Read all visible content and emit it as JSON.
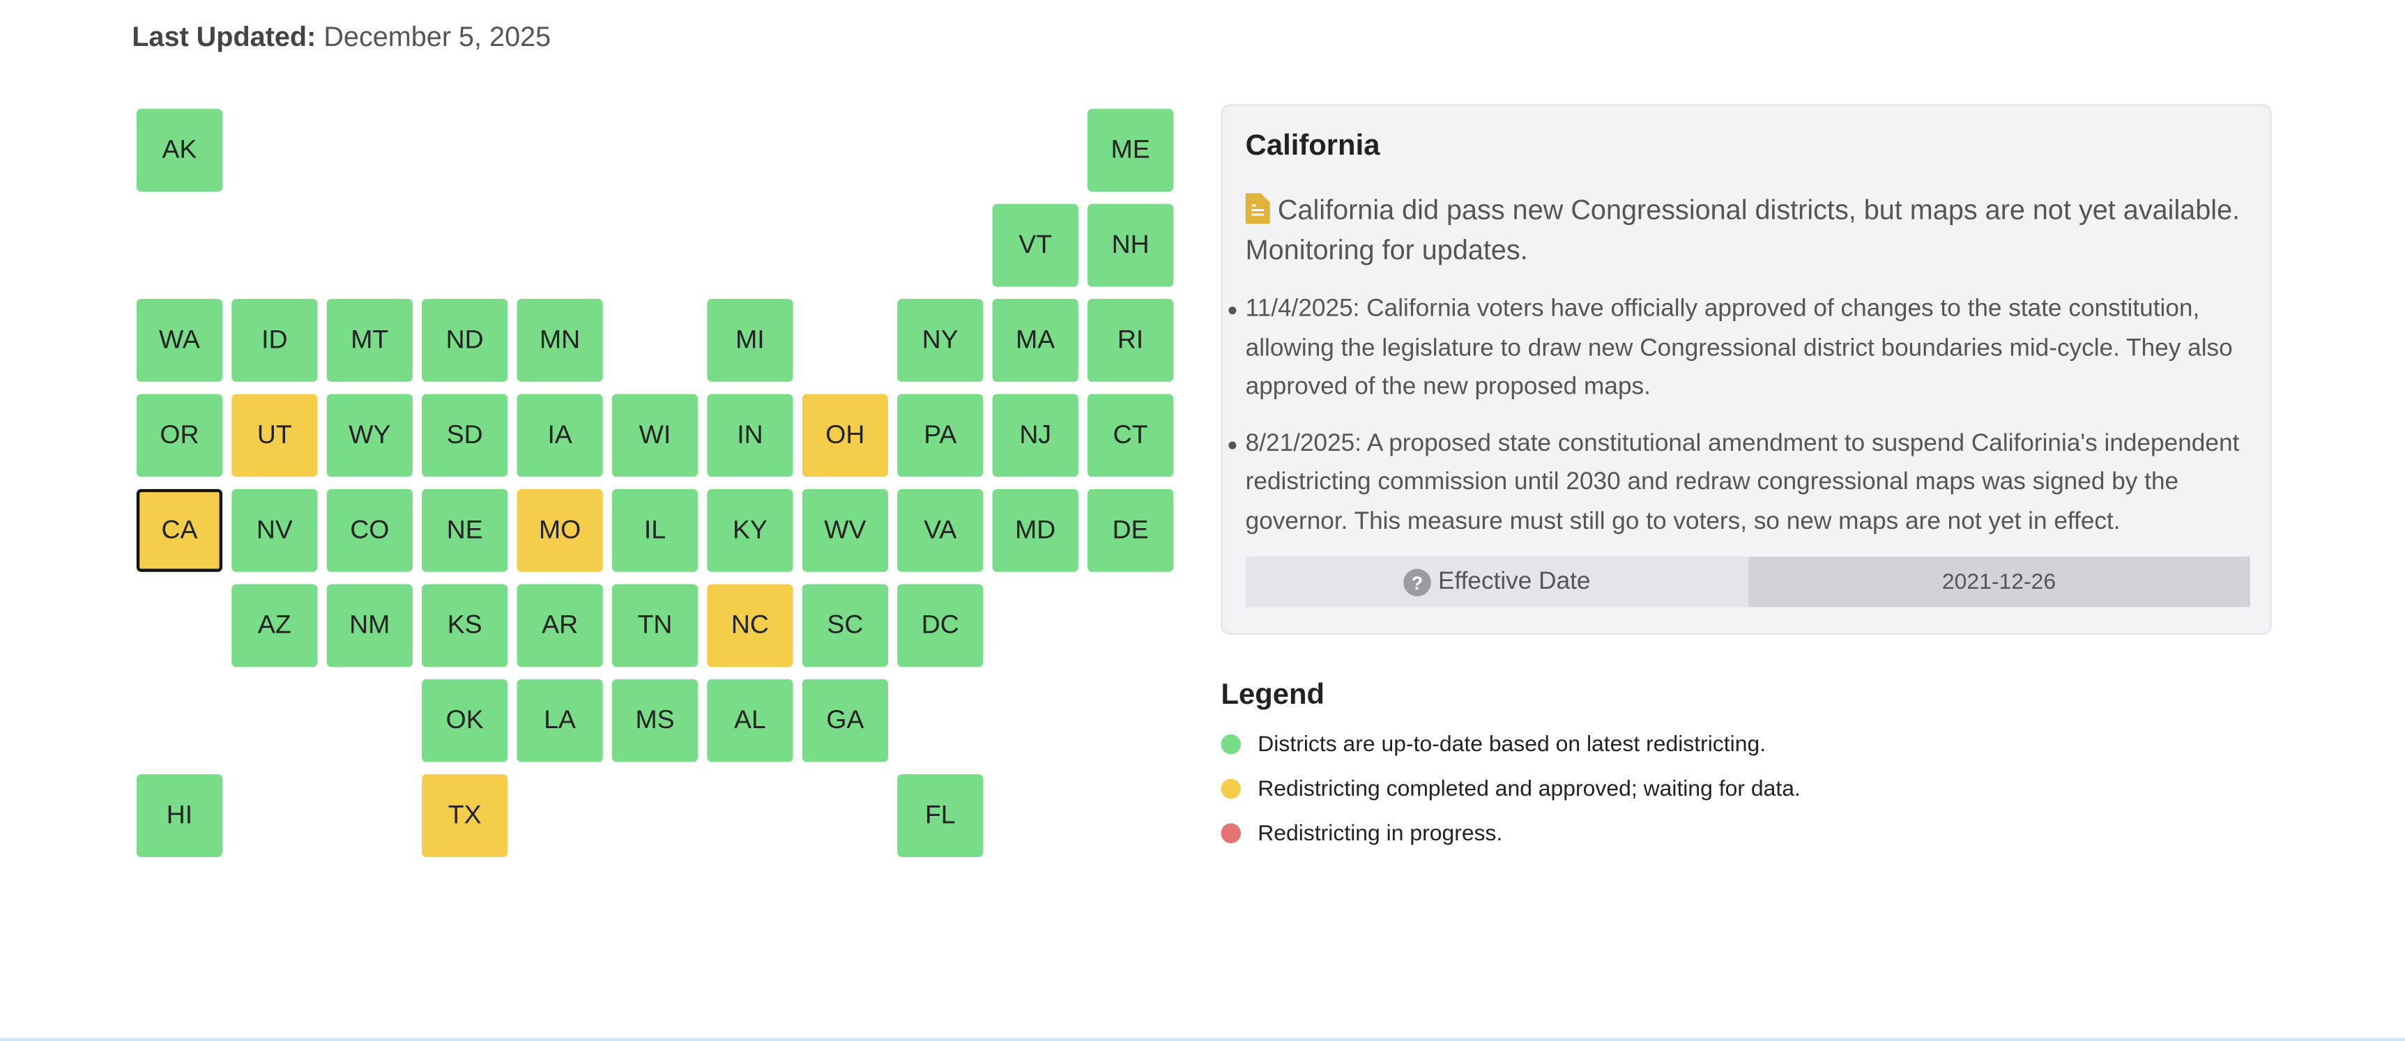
{
  "last_updated": {
    "label": "Last Updated:",
    "value": "December 5, 2025"
  },
  "tiles": [
    {
      "code": "AK",
      "color": "#79dc88"
    },
    {
      "code": "ME",
      "color": "#79dc88"
    },
    {
      "code": "VT",
      "color": "#79dc88"
    },
    {
      "code": "NH",
      "color": "#79dc88"
    },
    {
      "code": "WA",
      "color": "#79dc88"
    },
    {
      "code": "ID",
      "color": "#79dc88"
    },
    {
      "code": "MT",
      "color": "#79dc88"
    },
    {
      "code": "ND",
      "color": "#79dc88"
    },
    {
      "code": "MN",
      "color": "#79dc88"
    },
    {
      "code": "MI",
      "color": "#79dc88"
    },
    {
      "code": "NY",
      "color": "#79dc88"
    },
    {
      "code": "MA",
      "color": "#79dc88"
    },
    {
      "code": "RI",
      "color": "#79dc88"
    },
    {
      "code": "OR",
      "color": "#79dc88"
    },
    {
      "code": "UT",
      "color": "#f4cd4a"
    },
    {
      "code": "WY",
      "color": "#79dc88"
    },
    {
      "code": "SD",
      "color": "#79dc88"
    },
    {
      "code": "IA",
      "color": "#79dc88"
    },
    {
      "code": "WI",
      "color": "#79dc88"
    },
    {
      "code": "IN",
      "color": "#79dc88"
    },
    {
      "code": "OH",
      "color": "#f4cd4a"
    },
    {
      "code": "PA",
      "color": "#79dc88"
    },
    {
      "code": "NJ",
      "color": "#79dc88"
    },
    {
      "code": "CT",
      "color": "#79dc88"
    },
    {
      "code": "CA",
      "color": "#f4cd4a",
      "selected": true
    },
    {
      "code": "NV",
      "color": "#79dc88"
    },
    {
      "code": "CO",
      "color": "#79dc88"
    },
    {
      "code": "NE",
      "color": "#79dc88"
    },
    {
      "code": "MO",
      "color": "#f4cd4a"
    },
    {
      "code": "IL",
      "color": "#79dc88"
    },
    {
      "code": "KY",
      "color": "#79dc88"
    },
    {
      "code": "WV",
      "color": "#79dc88"
    },
    {
      "code": "VA",
      "color": "#79dc88"
    },
    {
      "code": "MD",
      "color": "#79dc88"
    },
    {
      "code": "DE",
      "color": "#79dc88"
    },
    {
      "code": "AZ",
      "color": "#79dc88"
    },
    {
      "code": "NM",
      "color": "#79dc88"
    },
    {
      "code": "KS",
      "color": "#79dc88"
    },
    {
      "code": "AR",
      "color": "#79dc88"
    },
    {
      "code": "TN",
      "color": "#79dc88"
    },
    {
      "code": "NC",
      "color": "#f4cd4a"
    },
    {
      "code": "SC",
      "color": "#79dc88"
    },
    {
      "code": "DC",
      "color": "#79dc88"
    },
    {
      "code": "OK",
      "color": "#79dc88"
    },
    {
      "code": "LA",
      "color": "#79dc88"
    },
    {
      "code": "MS",
      "color": "#79dc88"
    },
    {
      "code": "AL",
      "color": "#79dc88"
    },
    {
      "code": "GA",
      "color": "#79dc88"
    },
    {
      "code": "HI",
      "color": "#79dc88"
    },
    {
      "code": "TX",
      "color": "#f4cd4a"
    },
    {
      "code": "FL",
      "color": "#79dc88"
    }
  ],
  "detail": {
    "title": "California",
    "note": "California did pass new Congressional districts, but maps are not yet available. Monitoring for updates.",
    "bullets": [
      "11/4/2025: California voters have officially approved of changes to the state constitution, allowing the legislature to draw new Congressional district boundaries mid-cycle. They also approved of the new proposed maps.",
      "8/21/2025: A proposed state constitutional amendment to suspend Califorinia's independent redistricting commission until 2030 and redraw congressional maps was signed by the governor. This measure must still go to voters, so new maps are not yet in effect."
    ],
    "effective_date": {
      "label": "Effective Date",
      "value": "2021-12-26"
    }
  },
  "legend": {
    "title": "Legend",
    "items": [
      {
        "label": "Districts are up-to-date based on latest redistricting.",
        "color": "#79dc88"
      },
      {
        "label": "Redistricting completed and approved; waiting for data.",
        "color": "#f4cd4a"
      },
      {
        "label": "Redistricting in progress.",
        "color": "#e57373"
      }
    ]
  }
}
